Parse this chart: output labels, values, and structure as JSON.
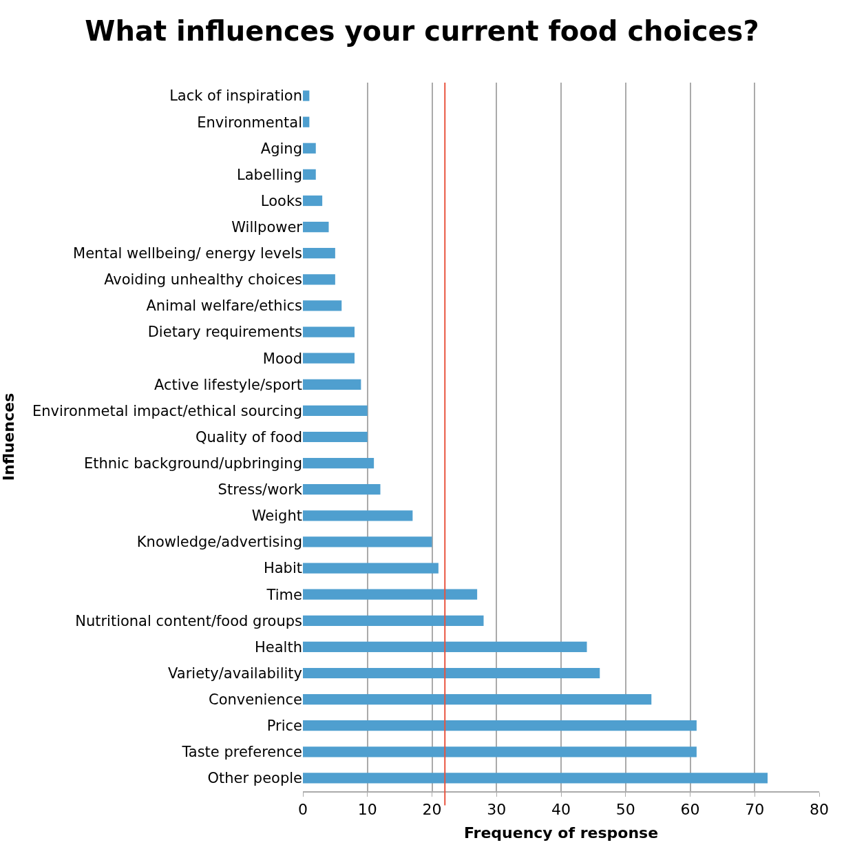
{
  "chart_data": {
    "type": "bar",
    "orientation": "horizontal",
    "title": "What influences your current food choices?",
    "xlabel": "Frequency of response",
    "ylabel": "Influences",
    "categories": [
      "Lack of inspiration",
      "Environmental",
      "Aging",
      "Labelling",
      "Looks",
      "Willpower",
      "Mental wellbeing/ energy levels",
      "Avoiding unhealthy choices",
      "Animal welfare/ethics",
      "Dietary requirements",
      "Mood",
      "Active lifestyle/sport",
      "Environmetal impact/ethical sourcing",
      "Quality of food",
      "Ethnic background/upbringing",
      "Stress/work",
      "Weight",
      "Knowledge/advertising",
      "Habit",
      "Time",
      "Nutritional content/food groups",
      "Health",
      "Variety/availability",
      "Convenience",
      "Price",
      "Taste preference",
      "Other people"
    ],
    "values": [
      1,
      1,
      2,
      2,
      3,
      4,
      5,
      5,
      6,
      8,
      8,
      9,
      10,
      10,
      11,
      12,
      17,
      20,
      21,
      27,
      28,
      44,
      46,
      54,
      61,
      61,
      72
    ],
    "color": "#4f9fcf",
    "xlim": [
      0,
      80
    ],
    "xticks": [
      0,
      10,
      20,
      30,
      40,
      50,
      60,
      70,
      80
    ],
    "grid": "x",
    "ref_lines": [
      {
        "axis": "x",
        "value": 22,
        "color": "#e8533f"
      }
    ]
  }
}
